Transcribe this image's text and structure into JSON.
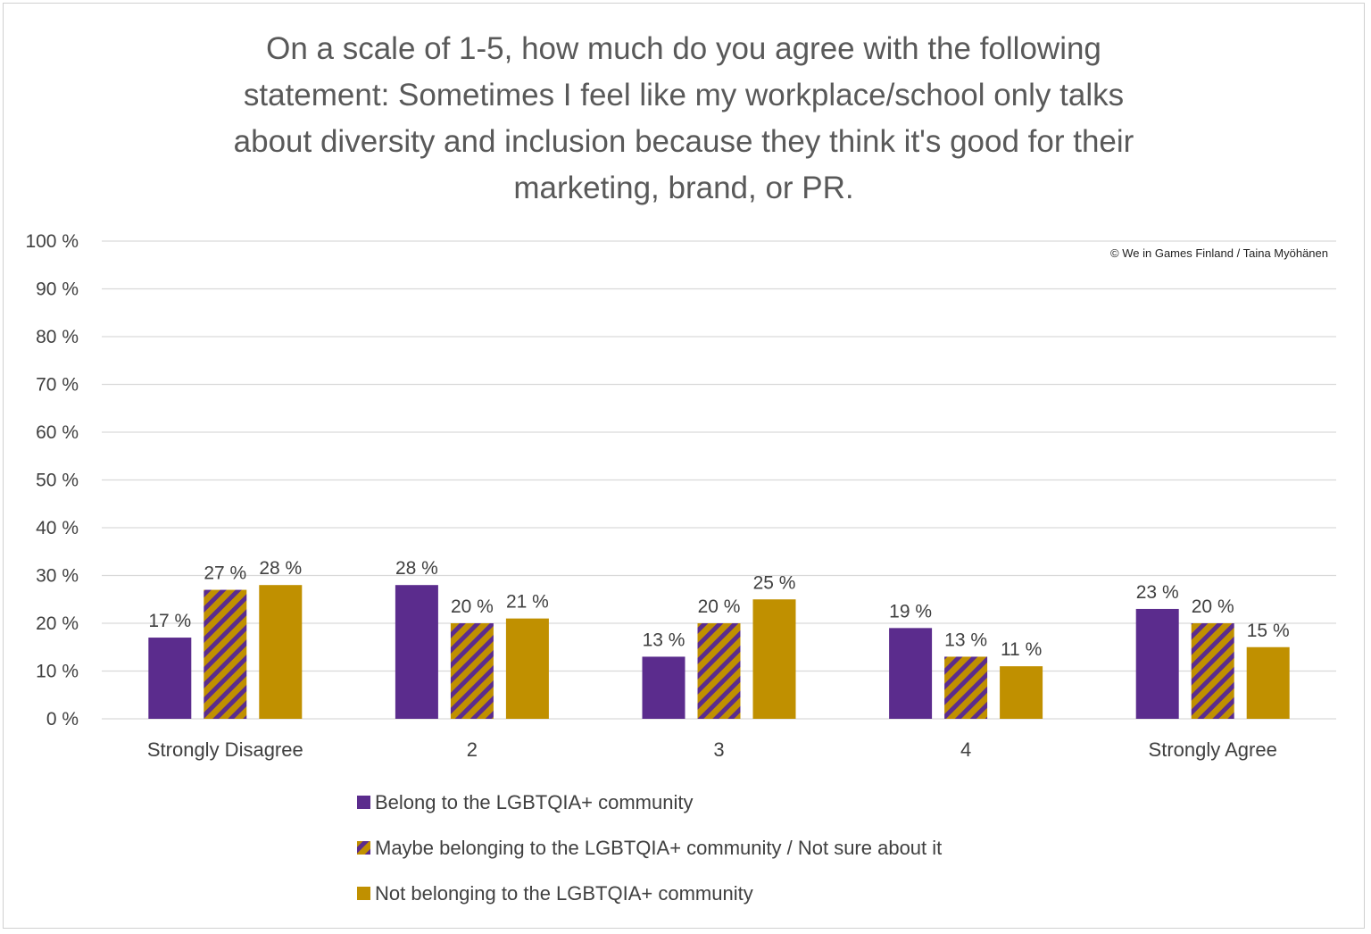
{
  "chart_data": {
    "type": "bar",
    "title_lines": [
      "On a scale of 1-5, how much do you agree with the following",
      "statement: Sometimes I feel like my workplace/school only talks",
      "about diversity and inclusion because they think it's good for their",
      "marketing, brand, or PR."
    ],
    "credit": "© We in Games Finland / Taina Myöhänen",
    "categories": [
      "Strongly Disagree",
      "2",
      "3",
      "4",
      "Strongly Agree"
    ],
    "y_tick_labels": [
      "0 %",
      "10 %",
      "20 %",
      "30 %",
      "40 %",
      "50 %",
      "60 %",
      "70 %",
      "80 %",
      "90 %",
      "100 %"
    ],
    "ylim": [
      0,
      100
    ],
    "grid": true,
    "legend_position": "bottom",
    "series": [
      {
        "name": "Belong to the LGBTQIA+ community",
        "values": [
          17,
          28,
          13,
          19,
          23
        ],
        "labels": [
          "17 %",
          "28 %",
          "13 %",
          "19 %",
          "23 %"
        ],
        "color": "#5b2c8d",
        "pattern": "solid"
      },
      {
        "name": "Maybe belonging to the LGBTQIA+ community / Not sure about it",
        "values": [
          27,
          20,
          20,
          13,
          20
        ],
        "labels": [
          "27 %",
          "20 %",
          "20 %",
          "13 %",
          "20 %"
        ],
        "color": "#c09000",
        "stripe_color": "#5b2c8d",
        "pattern": "diagonal-stripes"
      },
      {
        "name": "Not belonging to the LGBTQIA+ community",
        "values": [
          28,
          21,
          25,
          11,
          15
        ],
        "labels": [
          "28 %",
          "21 %",
          "25 %",
          "11 %",
          "15 %"
        ],
        "color": "#c09000",
        "pattern": "solid"
      }
    ]
  }
}
